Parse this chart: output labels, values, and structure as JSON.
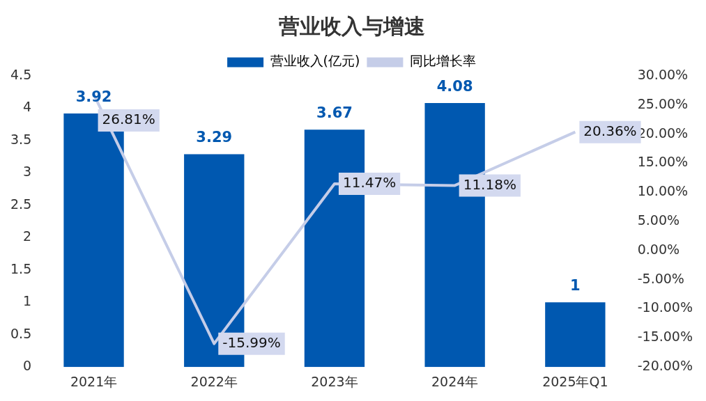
{
  "chart_data": {
    "type": "bar",
    "title": "营业收入与增速",
    "categories": [
      "2021年",
      "2022年",
      "2023年",
      "2024年",
      "2025年Q1"
    ],
    "series": [
      {
        "name": "营业收入(亿元)",
        "color": "#0058b0",
        "values": [
          3.92,
          3.29,
          3.67,
          4.08,
          1
        ],
        "value_labels": [
          "3.92",
          "3.29",
          "3.67",
          "4.08",
          "1"
        ]
      },
      {
        "name": "同比增长率",
        "type": "line",
        "axis": "y2",
        "color": "#c5cde8",
        "values": [
          26.81,
          -15.99,
          11.47,
          11.18,
          20.36
        ],
        "value_labels": [
          "26.81%",
          "-15.99%",
          "11.47%",
          "11.18%",
          "20.36%"
        ]
      }
    ],
    "ylim": [
      0,
      4.5
    ],
    "yticks": [
      0,
      0.5,
      1,
      1.5,
      2,
      2.5,
      3,
      3.5,
      4,
      4.5
    ],
    "y2lim": [
      -20,
      30
    ],
    "y2ticks": [
      {
        "value": -20,
        "label": "-20.00%"
      },
      {
        "value": -15,
        "label": "-15.00%"
      },
      {
        "value": -10,
        "label": "-10.00%"
      },
      {
        "value": -5,
        "label": "-5.00%"
      },
      {
        "value": 0,
        "label": "0.00%"
      },
      {
        "value": 5,
        "label": "5.00%"
      },
      {
        "value": 10,
        "label": "10.00%"
      },
      {
        "value": 15,
        "label": "15.00%"
      },
      {
        "value": 20,
        "label": "20.00%"
      },
      {
        "value": 25,
        "label": "25.00%"
      },
      {
        "value": 30,
        "label": "30.00%"
      }
    ],
    "grid": false,
    "legend": "top",
    "marker": "none",
    "line_style": "solid"
  }
}
